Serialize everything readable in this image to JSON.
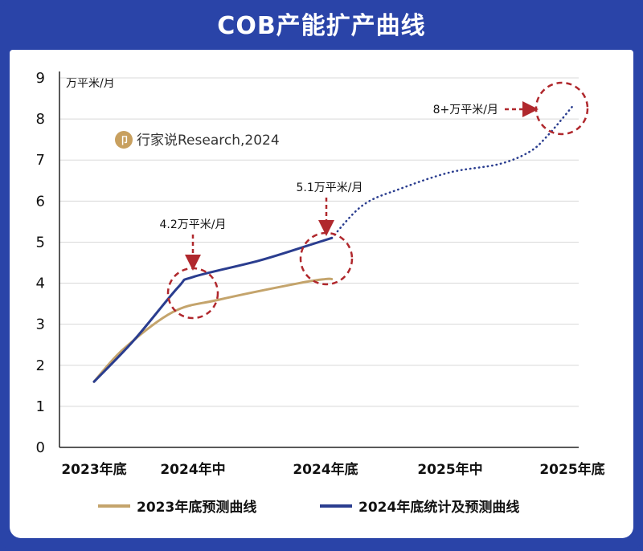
{
  "title": "COB产能扩产曲线",
  "watermark": "行家说Research,2024",
  "chart_data": {
    "type": "line",
    "title": "COB产能扩产曲线",
    "ylabel": "万平米/月",
    "xlabel": "",
    "ylim": [
      0,
      9
    ],
    "y_ticks": [
      0,
      1,
      2,
      3,
      4,
      5,
      6,
      7,
      8,
      9
    ],
    "categories": [
      "2023年底",
      "2024年中",
      "2024年底",
      "2025年中",
      "2025年底"
    ],
    "grid": "horizontal",
    "legend_position": "bottom",
    "series": [
      {
        "name": "2023年底预测曲线",
        "color": "#c4a46c",
        "style": "solid",
        "points": [
          [
            0,
            1.6
          ],
          [
            0.3,
            2.4
          ],
          [
            0.8,
            3.3
          ],
          [
            1.2,
            3.6
          ],
          [
            1.8,
            4.0
          ],
          [
            2.0,
            4.1
          ],
          [
            2.05,
            4.1
          ]
        ]
      },
      {
        "name": "2024年底统计及预测曲线",
        "color": "#2a3d8f",
        "style": "solid",
        "points": [
          [
            0,
            1.6
          ],
          [
            0.4,
            2.6
          ],
          [
            0.85,
            3.9
          ],
          [
            1.0,
            4.15
          ],
          [
            1.5,
            4.55
          ],
          [
            1.9,
            4.95
          ],
          [
            2.05,
            5.1
          ]
        ]
      },
      {
        "name": "2024年底统计及预测曲线",
        "color": "#2a3d8f",
        "style": "dotted",
        "points": [
          [
            2.05,
            5.1
          ],
          [
            2.3,
            5.9
          ],
          [
            2.6,
            6.3
          ],
          [
            3.0,
            6.7
          ],
          [
            3.4,
            6.9
          ],
          [
            3.65,
            7.2
          ],
          [
            3.8,
            7.6
          ],
          [
            4.0,
            8.3
          ]
        ]
      }
    ],
    "annotations": [
      {
        "text": "4.2万平米/月",
        "x": 1.0,
        "y": 4.2
      },
      {
        "text": "5.1万平米/月",
        "x": 2.05,
        "y": 5.1
      },
      {
        "text": "8+万平米/月",
        "x": 3.95,
        "y": 8.3
      }
    ]
  }
}
